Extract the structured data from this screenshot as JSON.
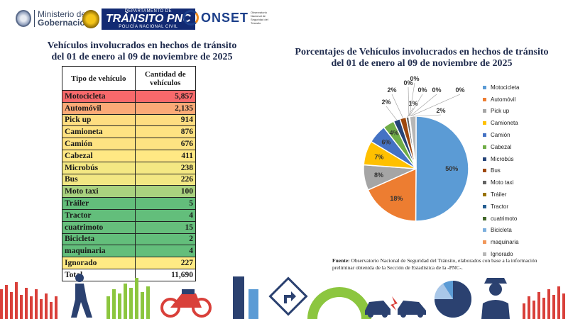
{
  "logos": {
    "gobernacion": {
      "line1": "Ministerio de",
      "line2": "Gobernación"
    },
    "pnc": {
      "top": "DEPARTAMENTO DE",
      "main": "TRÁNSITO PNC",
      "bottom": "POLICÍA NACIONAL CIVIL"
    },
    "onset": {
      "name": "ONSET",
      "sub": "Observatorio Nacional de Seguridad del Tránsito"
    }
  },
  "table": {
    "title_line1": "Vehículos involucrados en hechos de tránsito",
    "title_line2": "del 01 de enero al 09 de noviembre de 2025",
    "header_type": "Tipo de vehículo",
    "header_qty": "Cantidad de vehículos",
    "rows": [
      {
        "type": "Motocicleta",
        "qty": "5,857",
        "color": "#f8696b"
      },
      {
        "type": "Automóvil",
        "qty": "2,135",
        "color": "#fbaa77"
      },
      {
        "type": "Pick up",
        "qty": "914",
        "color": "#fedd81"
      },
      {
        "type": "Camioneta",
        "qty": "876",
        "color": "#fee282"
      },
      {
        "type": "Camión",
        "qty": "676",
        "color": "#fee382"
      },
      {
        "type": "Cabezal",
        "qty": "411",
        "color": "#ffe884"
      },
      {
        "type": "Microbús",
        "qty": "238",
        "color": "#f4e883"
      },
      {
        "type": "Bus",
        "qty": "226",
        "color": "#f2e783"
      },
      {
        "type": "Moto taxi",
        "qty": "100",
        "color": "#a9d27f"
      },
      {
        "type": "Tráiler",
        "qty": "5",
        "color": "#63be7b"
      },
      {
        "type": "Tractor",
        "qty": "4",
        "color": "#63be7b"
      },
      {
        "type": "cuatrimoto",
        "qty": "15",
        "color": "#66bf7c"
      },
      {
        "type": "Bicicleta",
        "qty": "2",
        "color": "#63be7b"
      },
      {
        "type": "maquinaria",
        "qty": "4",
        "color": "#63be7b"
      },
      {
        "type": "Ignorado",
        "qty": "227",
        "color": "#ffeb84"
      }
    ],
    "total_label": "Total",
    "total_value": "11,690"
  },
  "pie": {
    "title_line1": "Porcentajes de Vehículos involucrados en hechos de tránsito",
    "title_line2": "del 01 de enero al 09 de noviembre de 2025"
  },
  "source": {
    "label": "Fuente:",
    "text": "Observatorio Nacional de Seguridad del Tránsito, elaborados con base a la información preliminar obtenida de la Sección de Estadística de la -PNC-."
  },
  "chart_data": {
    "type": "pie",
    "title": "Porcentajes de Vehículos involucrados en hechos de tránsito del 01 de enero al 09 de noviembre de 2025",
    "legend_position": "right",
    "slices": [
      {
        "label": "Motocicleta",
        "value": 5857,
        "pct_label": "50%",
        "color": "#5b9bd5"
      },
      {
        "label": "Automóvil",
        "value": 2135,
        "pct_label": "18%",
        "color": "#ed7d31"
      },
      {
        "label": "Pick up",
        "value": 914,
        "pct_label": "8%",
        "color": "#a5a5a5"
      },
      {
        "label": "Camioneta",
        "value": 876,
        "pct_label": "7%",
        "color": "#ffc000"
      },
      {
        "label": "Camión",
        "value": 676,
        "pct_label": "6%",
        "color": "#4472c4"
      },
      {
        "label": "Cabezal",
        "value": 411,
        "pct_label": "4%",
        "color": "#70ad47"
      },
      {
        "label": "Microbús",
        "value": 238,
        "pct_label": "2%",
        "color": "#264478"
      },
      {
        "label": "Bus",
        "value": 226,
        "pct_label": "2%",
        "color": "#9e480e"
      },
      {
        "label": "Moto taxi",
        "value": 100,
        "pct_label": "1%",
        "color": "#636363"
      },
      {
        "label": "Tráiler",
        "value": 5,
        "pct_label": "0%",
        "color": "#997300"
      },
      {
        "label": "Tractor",
        "value": 4,
        "pct_label": "0%",
        "color": "#255e91"
      },
      {
        "label": "cuatrimoto",
        "value": 15,
        "pct_label": "0%",
        "color": "#43682b"
      },
      {
        "label": "Bicicleta",
        "value": 2,
        "pct_label": "0%",
        "color": "#7cafdd"
      },
      {
        "label": "maquinaria",
        "value": 4,
        "pct_label": "0%",
        "color": "#f1975a"
      },
      {
        "label": "Ignorado",
        "value": 227,
        "pct_label": "2%",
        "color": "#b7b7b7"
      }
    ]
  }
}
